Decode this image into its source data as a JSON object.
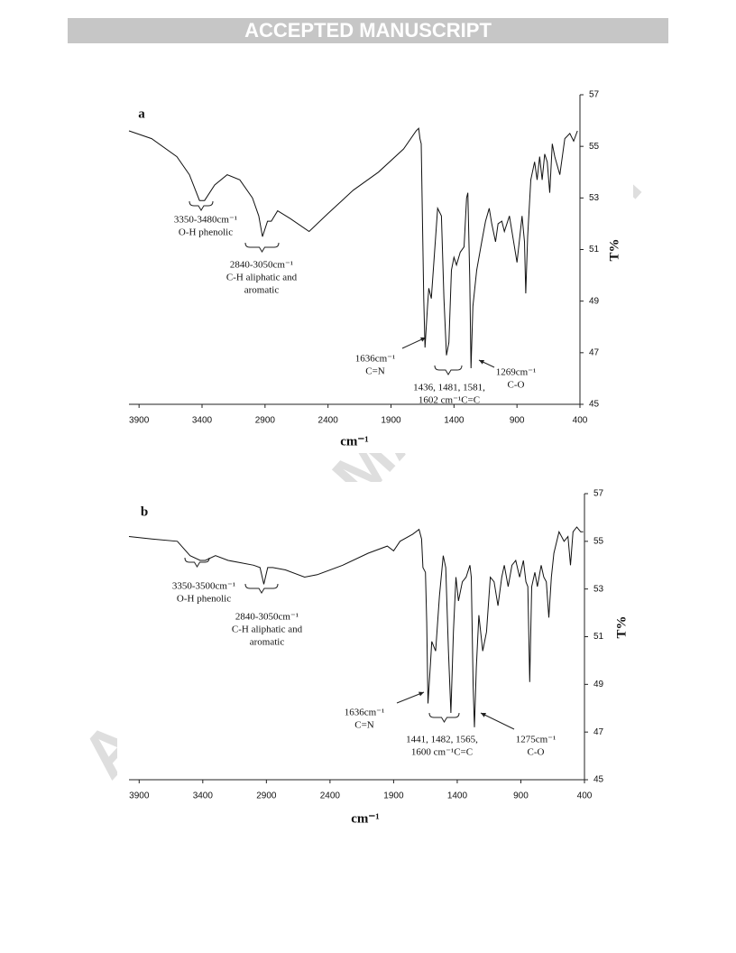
{
  "header": {
    "banner": "ACCEPTED MANUSCRIPT"
  },
  "watermark": "ACCEPTED MANUSCRIPT",
  "chart_data": [
    {
      "type": "line",
      "panel": "a",
      "x_label": "cm⁻¹",
      "y_label": "T%",
      "color": "#111111",
      "xlim": [
        3980,
        400
      ],
      "ylim": [
        45,
        57
      ],
      "xticks": [
        3900,
        3400,
        2900,
        2400,
        1900,
        1400,
        900,
        400
      ],
      "yticks": [
        45,
        47,
        49,
        51,
        53,
        55,
        57
      ],
      "x": [
        3980,
        3800,
        3600,
        3500,
        3420,
        3380,
        3300,
        3200,
        3100,
        3000,
        2950,
        2920,
        2880,
        2850,
        2800,
        2700,
        2550,
        2400,
        2200,
        2000,
        1800,
        1700,
        1680,
        1670,
        1660,
        1640,
        1630,
        1610,
        1600,
        1580,
        1560,
        1530,
        1500,
        1480,
        1460,
        1440,
        1420,
        1400,
        1380,
        1350,
        1320,
        1300,
        1290,
        1275,
        1265,
        1250,
        1220,
        1180,
        1150,
        1120,
        1100,
        1070,
        1050,
        1020,
        1000,
        960,
        930,
        900,
        880,
        860,
        840,
        830,
        815,
        790,
        760,
        740,
        720,
        700,
        680,
        660,
        640,
        620,
        600,
        560,
        520,
        480,
        450,
        420
      ],
      "values": [
        55.6,
        55.3,
        54.6,
        53.9,
        52.9,
        52.9,
        53.5,
        53.9,
        53.7,
        53.0,
        52.3,
        51.5,
        52.1,
        52.1,
        52.5,
        52.2,
        51.7,
        52.4,
        53.3,
        54.0,
        54.9,
        55.6,
        55.7,
        55.3,
        55.1,
        49.1,
        47.2,
        48.8,
        49.5,
        49.1,
        50.5,
        52.6,
        52.3,
        49.1,
        46.9,
        47.4,
        50.2,
        50.7,
        50.4,
        50.9,
        51.1,
        53.0,
        53.2,
        49.9,
        46.4,
        48.8,
        50.2,
        51.3,
        52.1,
        52.6,
        52.0,
        51.3,
        52.0,
        52.1,
        51.7,
        52.3,
        51.4,
        50.5,
        51.4,
        52.3,
        51.3,
        49.3,
        51.5,
        53.7,
        54.4,
        53.7,
        54.6,
        53.7,
        54.7,
        54.4,
        53.2,
        55.1,
        54.6,
        53.9,
        55.3,
        55.5,
        55.2,
        55.6
      ],
      "annotations": [
        {
          "lines": [
            "3350-3480cm⁻¹",
            "O-H phenolic"
          ]
        },
        {
          "lines": [
            "2840-3050cm⁻¹",
            "C-H aliphatic and",
            "aromatic"
          ]
        },
        {
          "lines": [
            "1636cm⁻¹",
            "C=N"
          ]
        },
        {
          "lines": [
            "1436, 1481, 1581,",
            "1602 cm⁻¹C=C"
          ]
        },
        {
          "lines": [
            "1269cm⁻¹",
            "C-O"
          ]
        }
      ]
    },
    {
      "type": "line",
      "panel": "b",
      "x_label": "cm⁻¹",
      "y_label": "T%",
      "color": "#111111",
      "xlim": [
        3980,
        400
      ],
      "ylim": [
        45,
        57
      ],
      "xticks": [
        3900,
        3400,
        2900,
        2400,
        1900,
        1400,
        900,
        400
      ],
      "yticks": [
        45,
        47,
        49,
        51,
        53,
        55,
        57
      ],
      "x": [
        3980,
        3800,
        3600,
        3500,
        3420,
        3380,
        3300,
        3200,
        3100,
        3000,
        2950,
        2920,
        2890,
        2850,
        2750,
        2600,
        2500,
        2300,
        2100,
        1950,
        1900,
        1850,
        1750,
        1700,
        1680,
        1670,
        1650,
        1640,
        1630,
        1610,
        1600,
        1570,
        1540,
        1510,
        1490,
        1470,
        1450,
        1430,
        1410,
        1390,
        1360,
        1330,
        1300,
        1290,
        1275,
        1265,
        1250,
        1230,
        1200,
        1170,
        1140,
        1110,
        1080,
        1050,
        1030,
        1000,
        970,
        940,
        910,
        880,
        860,
        845,
        830,
        815,
        790,
        770,
        740,
        720,
        700,
        680,
        660,
        640,
        600,
        560,
        530,
        510,
        490,
        460,
        430,
        410
      ],
      "values": [
        55.2,
        55.1,
        55.0,
        54.4,
        54.2,
        54.2,
        54.4,
        54.2,
        54.1,
        54.0,
        53.9,
        53.2,
        53.9,
        53.9,
        53.8,
        53.5,
        53.6,
        54.0,
        54.5,
        54.8,
        54.6,
        55.0,
        55.3,
        55.5,
        55.1,
        53.9,
        53.7,
        51.6,
        48.2,
        49.9,
        50.8,
        50.4,
        52.7,
        54.4,
        53.9,
        50.5,
        47.8,
        51.2,
        53.5,
        52.5,
        53.3,
        53.5,
        54.0,
        53.5,
        48.9,
        47.2,
        49.7,
        51.9,
        50.4,
        51.2,
        53.5,
        53.3,
        52.3,
        53.5,
        54.0,
        53.1,
        54.0,
        54.2,
        53.5,
        54.2,
        53.3,
        53.1,
        49.1,
        53.1,
        53.7,
        53.1,
        54.0,
        53.5,
        53.3,
        51.8,
        53.5,
        54.5,
        55.4,
        55.0,
        55.2,
        54.0,
        55.4,
        55.6,
        55.4,
        55.4
      ],
      "annotations": [
        {
          "lines": [
            "3350-3500cm⁻¹",
            "O-H phenolic"
          ]
        },
        {
          "lines": [
            "2840-3050cm⁻¹",
            "C-H aliphatic and",
            "aromatic"
          ]
        },
        {
          "lines": [
            "1636cm⁻¹",
            "C=N"
          ]
        },
        {
          "lines": [
            "1441, 1482, 1565,",
            "1600 cm⁻¹C=C"
          ]
        },
        {
          "lines": [
            "1275cm⁻¹",
            "C-O"
          ]
        }
      ]
    }
  ]
}
